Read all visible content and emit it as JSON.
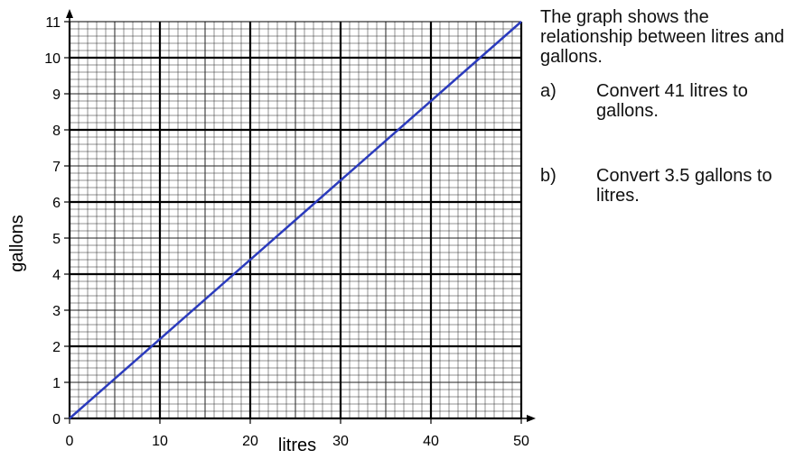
{
  "question": {
    "intro": "The graph shows the relationship between litres and gallons.",
    "parts": [
      {
        "letter": "a)",
        "text": "Convert 41 litres to gallons."
      },
      {
        "letter": "b)",
        "text": "Convert 3.5 gallons to litres."
      }
    ]
  },
  "chart_data": {
    "type": "line",
    "title": "",
    "xlabel": "litres",
    "ylabel": "gallons",
    "xlim": [
      0,
      50
    ],
    "ylim": [
      0,
      11
    ],
    "x_major_ticks": [
      0,
      10,
      20,
      30,
      40,
      50
    ],
    "y_major_ticks": [
      0,
      1,
      2,
      3,
      4,
      5,
      6,
      7,
      8,
      9,
      10,
      11
    ],
    "grid": true,
    "series": [
      {
        "x": [
          0,
          50
        ],
        "y": [
          0,
          11
        ],
        "color": "#2b3bbd"
      }
    ]
  }
}
